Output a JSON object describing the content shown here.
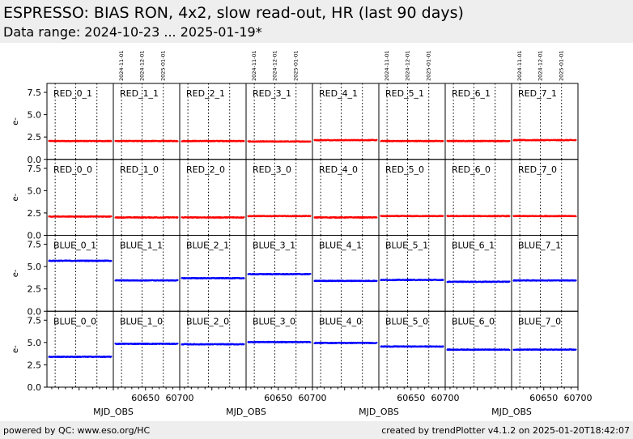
{
  "header": {
    "title": "ESPRESSO: BIAS RON, 4x2, slow read-out, HR (last 90 days)",
    "subtitle": "Data range: 2024-10-23 ... 2025-01-19*"
  },
  "footer": {
    "left": "powered by QC: www.eso.org/HC",
    "right": "created by trendPlotter v4.1.2 on 2025-01-20T18:42:07"
  },
  "colors": {
    "red": "#ff0000",
    "blue": "#0000ff",
    "header_bg": "#eeeeee"
  },
  "chart_data": {
    "type": "scatter",
    "xlabel": "MJD_OBS",
    "ylabel": "e-",
    "xlim": [
      60603,
      60700
    ],
    "ylim": [
      0,
      8.5
    ],
    "yticks": [
      0.0,
      2.5,
      5.0,
      7.5
    ],
    "ytick_labels": [
      "0.0",
      "2.5",
      "5.0",
      "7.5"
    ],
    "xticks": [
      60650,
      60700
    ],
    "xtick_labels": [
      "60650",
      "60700"
    ],
    "date_lines": [
      60615,
      60645,
      60676
    ],
    "date_labels": [
      "2024-11-01",
      "2024-12-01",
      "2025-01-01"
    ],
    "panels": [
      {
        "name": "RED_0_1",
        "color": "red",
        "level": 2.05
      },
      {
        "name": "RED_1_1",
        "color": "red",
        "level": 2.05
      },
      {
        "name": "RED_2_1",
        "color": "red",
        "level": 2.05
      },
      {
        "name": "RED_3_1",
        "color": "red",
        "level": 2.0
      },
      {
        "name": "RED_4_1",
        "color": "red",
        "level": 2.15
      },
      {
        "name": "RED_5_1",
        "color": "red",
        "level": 2.05
      },
      {
        "name": "RED_6_1",
        "color": "red",
        "level": 2.05
      },
      {
        "name": "RED_7_1",
        "color": "red",
        "level": 2.15
      },
      {
        "name": "RED_0_0",
        "color": "red",
        "level": 2.1
      },
      {
        "name": "RED_1_0",
        "color": "red",
        "level": 2.0
      },
      {
        "name": "RED_2_0",
        "color": "red",
        "level": 2.0
      },
      {
        "name": "RED_3_0",
        "color": "red",
        "level": 2.15
      },
      {
        "name": "RED_4_0",
        "color": "red",
        "level": 2.0
      },
      {
        "name": "RED_5_0",
        "color": "red",
        "level": 2.15
      },
      {
        "name": "RED_6_0",
        "color": "red",
        "level": 2.15
      },
      {
        "name": "RED_7_0",
        "color": "red",
        "level": 2.15
      },
      {
        "name": "BLUE_0_1",
        "color": "blue",
        "level": 5.65
      },
      {
        "name": "BLUE_1_1",
        "color": "blue",
        "level": 3.45
      },
      {
        "name": "BLUE_2_1",
        "color": "blue",
        "level": 3.7
      },
      {
        "name": "BLUE_3_1",
        "color": "blue",
        "level": 4.15
      },
      {
        "name": "BLUE_4_1",
        "color": "blue",
        "level": 3.4
      },
      {
        "name": "BLUE_5_1",
        "color": "blue",
        "level": 3.5
      },
      {
        "name": "BLUE_6_1",
        "color": "blue",
        "level": 3.3
      },
      {
        "name": "BLUE_7_1",
        "color": "blue",
        "level": 3.45
      },
      {
        "name": "BLUE_0_0",
        "color": "blue",
        "level": 3.4
      },
      {
        "name": "BLUE_1_0",
        "color": "blue",
        "level": 4.85
      },
      {
        "name": "BLUE_2_0",
        "color": "blue",
        "level": 4.8
      },
      {
        "name": "BLUE_3_0",
        "color": "blue",
        "level": 5.05
      },
      {
        "name": "BLUE_4_0",
        "color": "blue",
        "level": 4.95
      },
      {
        "name": "BLUE_5_0",
        "color": "blue",
        "level": 4.55
      },
      {
        "name": "BLUE_6_0",
        "color": "blue",
        "level": 4.2
      },
      {
        "name": "BLUE_7_0",
        "color": "blue",
        "level": 4.2
      }
    ]
  }
}
